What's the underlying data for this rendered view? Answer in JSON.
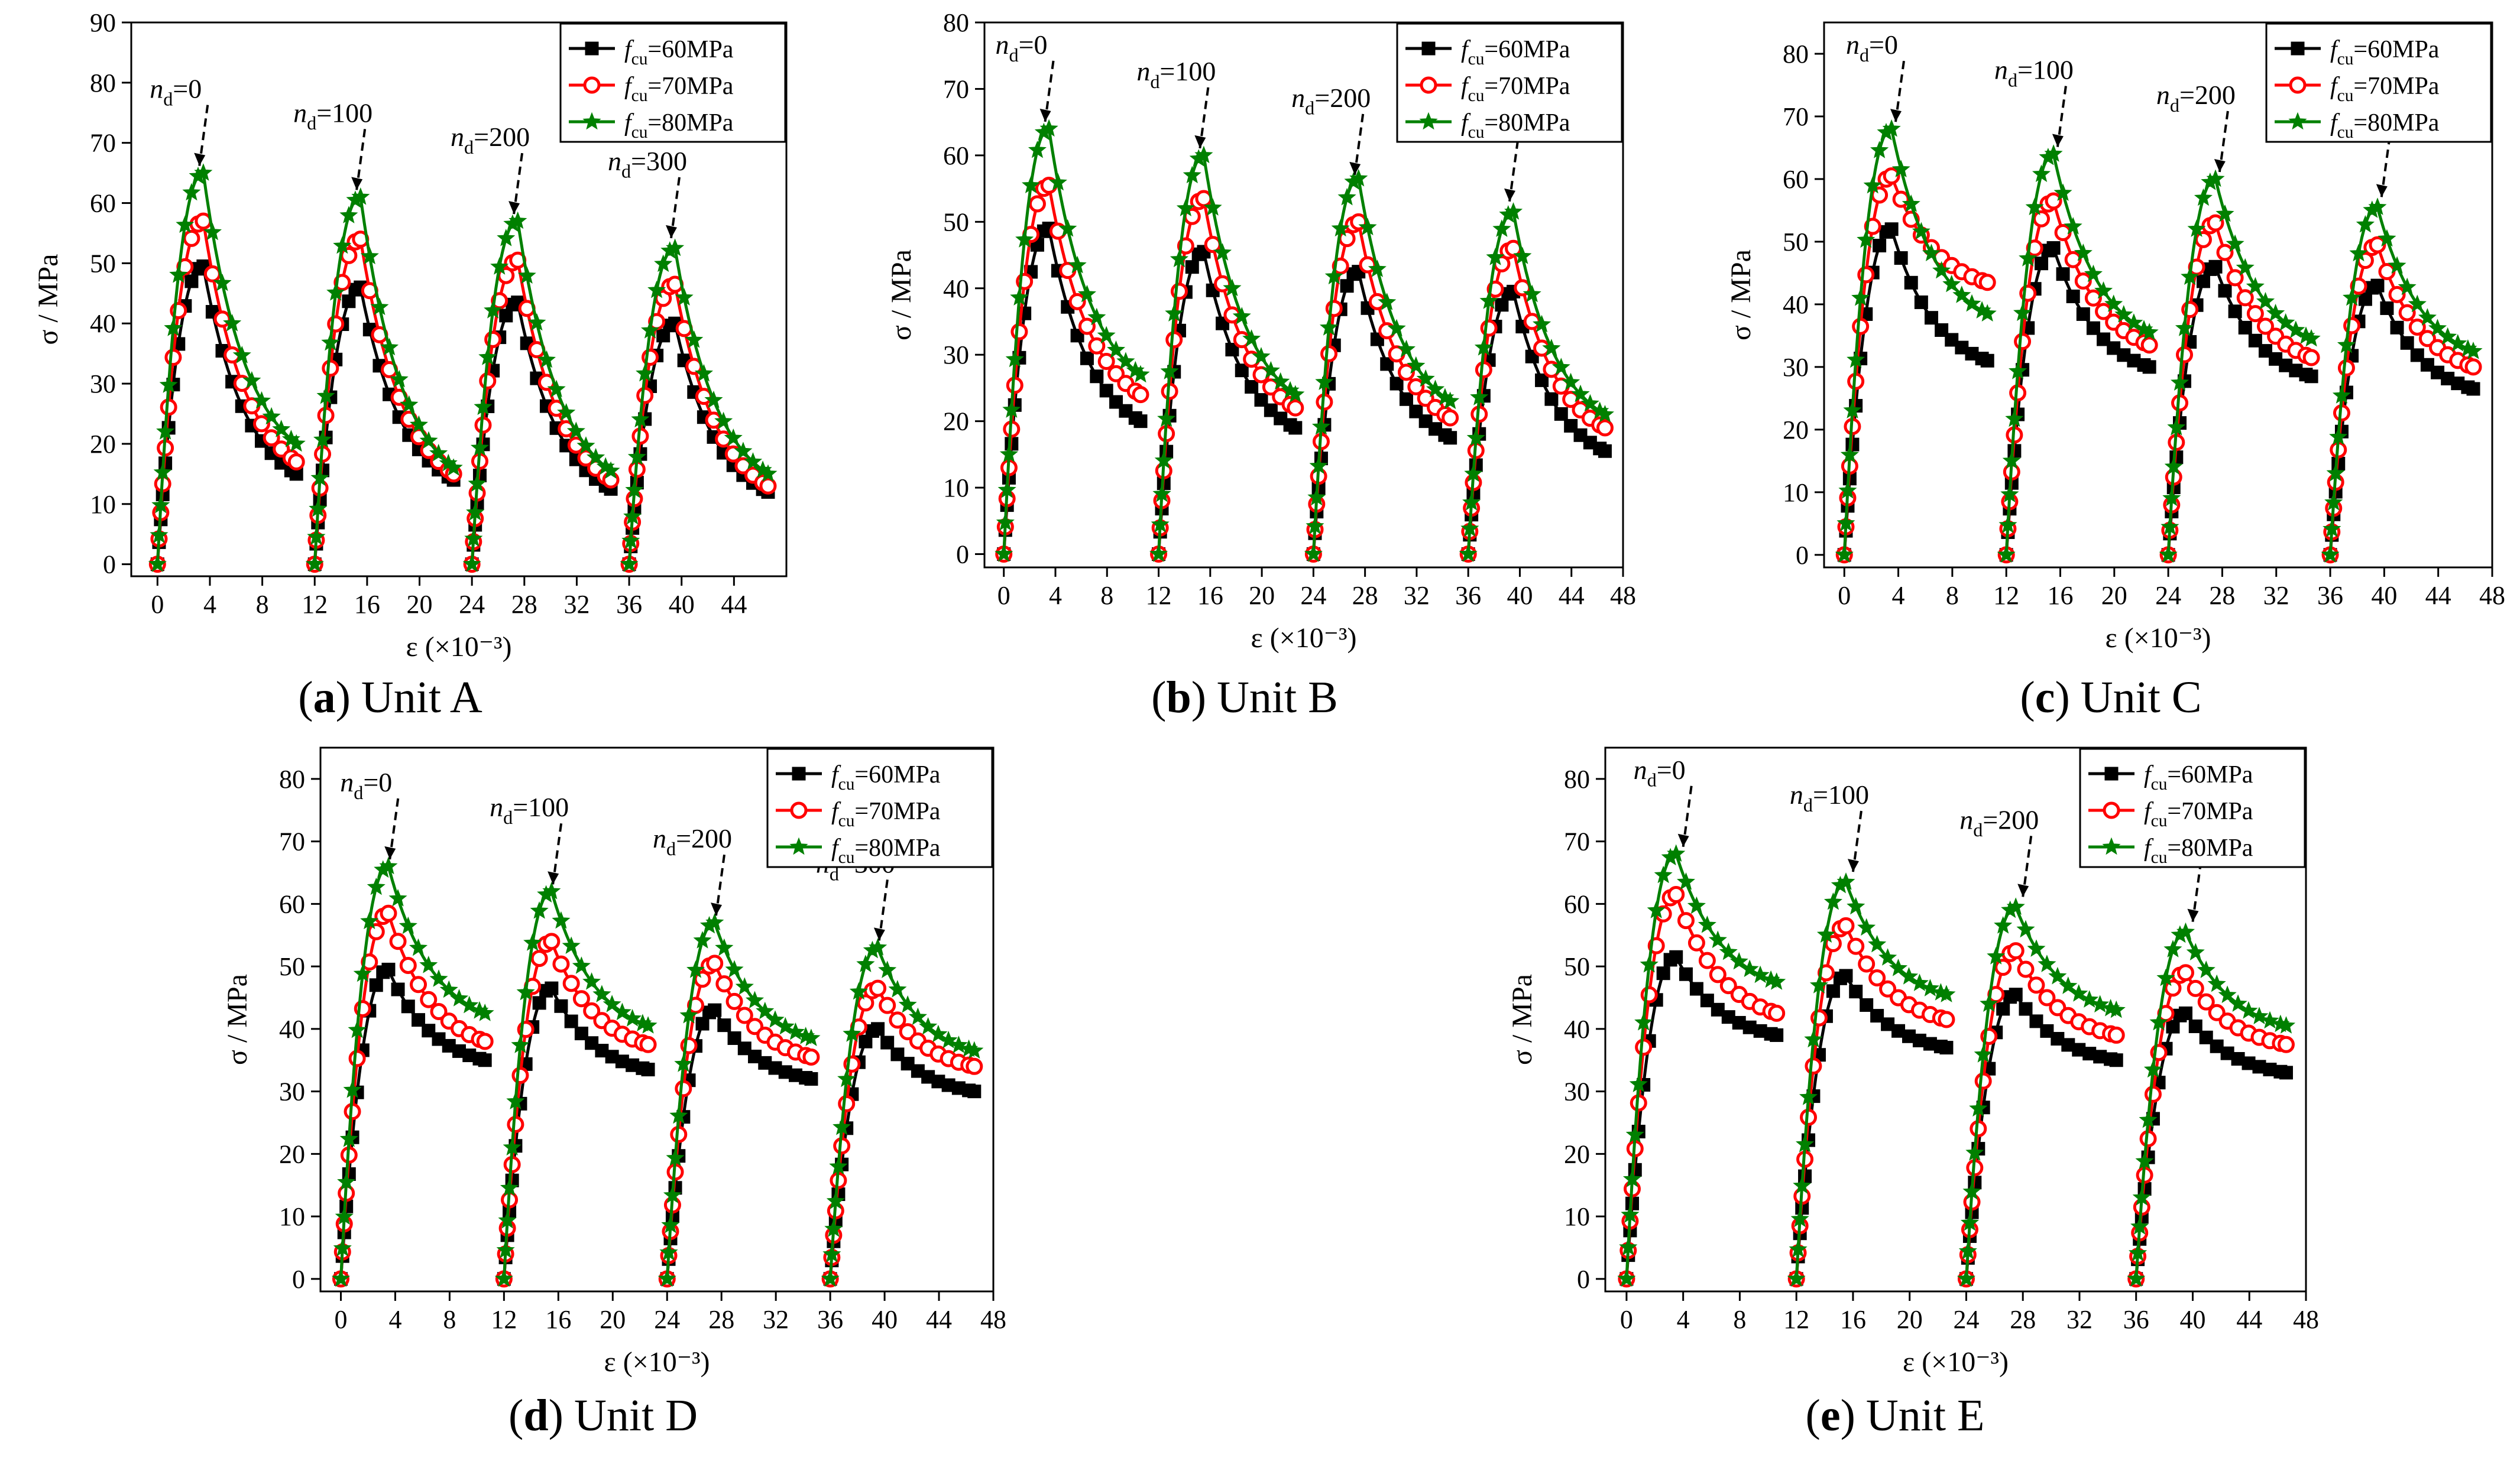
{
  "figure": {
    "panels": [
      {
        "tag": "(a)",
        "caption": "Unit A"
      },
      {
        "tag": "(b)",
        "caption": "Unit B"
      },
      {
        "tag": "(c)",
        "caption": "Unit C"
      },
      {
        "tag": "(d)",
        "caption": "Unit D"
      },
      {
        "tag": "(e)",
        "caption": "Unit E"
      }
    ]
  },
  "colors": {
    "fcu60": "#000000",
    "fcu70": "#ff0000",
    "fcu80": "#008000"
  },
  "chart_data": [
    {
      "type": "line",
      "panel": "Unit A",
      "xlabel": "ε (×10⁻³)",
      "ylabel": "σ / MPa",
      "xlim": [
        -2,
        48
      ],
      "ylim": [
        -2,
        90
      ],
      "xticks": [
        0,
        4,
        8,
        12,
        16,
        20,
        24,
        28,
        32,
        36,
        40,
        44
      ],
      "yticks": [
        0,
        10,
        20,
        30,
        40,
        50,
        60,
        70,
        80,
        90
      ],
      "legend_position": "top-right",
      "legend": [
        "fcu=60MPa",
        "fcu=70MPa",
        "fcu=80MPa"
      ],
      "annotations": [
        {
          "text": "nd=0",
          "x": 3.2,
          "y": 65
        },
        {
          "text": "nd=100",
          "x": 15.2,
          "y": 61
        },
        {
          "text": "nd=200",
          "x": 27.2,
          "y": 57
        },
        {
          "text": "nd=300",
          "x": 39.2,
          "y": 53
        }
      ],
      "cycles": [
        {
          "start": 0,
          "end": 10.6,
          "peaks": [
            49.5,
            57.0,
            65.0
          ],
          "ends": [
            15.0,
            17.0,
            20.0
          ]
        },
        {
          "start": 12,
          "end": 22.6,
          "peaks": [
            46.0,
            54.0,
            61.0
          ],
          "ends": [
            14.0,
            15.0,
            16.0
          ]
        },
        {
          "start": 24,
          "end": 34.6,
          "peaks": [
            43.5,
            50.5,
            57.0
          ],
          "ends": [
            12.5,
            14.0,
            15.5
          ]
        },
        {
          "start": 36,
          "end": 46.6,
          "peaks": [
            40.0,
            46.5,
            52.5
          ],
          "ends": [
            12.0,
            13.0,
            15.0
          ]
        }
      ]
    },
    {
      "type": "line",
      "panel": "Unit B",
      "xlabel": "ε (×10⁻³)",
      "ylabel": "σ / MPa",
      "xlim": [
        -1.5,
        48
      ],
      "ylim": [
        -2,
        80
      ],
      "xticks": [
        0,
        4,
        8,
        12,
        16,
        20,
        24,
        28,
        32,
        36,
        40,
        44,
        48
      ],
      "yticks": [
        0,
        10,
        20,
        30,
        40,
        50,
        60,
        70,
        80
      ],
      "legend_position": "top-right",
      "legend": [
        "fcu=60MPa",
        "fcu=70MPa",
        "fcu=80MPa"
      ],
      "annotations": [
        {
          "text": "nd=0",
          "x": 3.2,
          "y": 64
        },
        {
          "text": "nd=100",
          "x": 15.2,
          "y": 60
        },
        {
          "text": "nd=200",
          "x": 27.2,
          "y": 56
        },
        {
          "text": "nd=300",
          "x": 39.2,
          "y": 52
        }
      ],
      "cycles": [
        {
          "start": 0,
          "end": 10.6,
          "peaks": [
            49.0,
            55.5,
            64.0
          ],
          "ends": [
            20.0,
            24.0,
            27.0
          ]
        },
        {
          "start": 12,
          "end": 22.6,
          "peaks": [
            45.5,
            53.5,
            60.0
          ],
          "ends": [
            19.0,
            22.0,
            24.0
          ]
        },
        {
          "start": 24,
          "end": 34.6,
          "peaks": [
            42.5,
            50.0,
            56.5
          ],
          "ends": [
            17.5,
            20.5,
            23.0
          ]
        },
        {
          "start": 36,
          "end": 46.6,
          "peaks": [
            39.5,
            46.0,
            51.5
          ],
          "ends": [
            15.5,
            19.0,
            21.0
          ]
        }
      ]
    },
    {
      "type": "line",
      "panel": "Unit C",
      "xlabel": "ε (×10⁻³)",
      "ylabel": "σ / MPa",
      "xlim": [
        -1.5,
        48
      ],
      "ylim": [
        -2,
        85
      ],
      "xticks": [
        0,
        4,
        8,
        12,
        16,
        20,
        24,
        28,
        32,
        36,
        40,
        44,
        48
      ],
      "yticks": [
        0,
        10,
        20,
        30,
        40,
        50,
        60,
        70,
        80
      ],
      "legend_position": "top-right",
      "legend": [
        "fcu=60MPa",
        "fcu=70MPa",
        "fcu=80MPa"
      ],
      "annotations": [
        {
          "text": "nd=0",
          "x": 3.8,
          "y": 68
        },
        {
          "text": "nd=100",
          "x": 15.8,
          "y": 64
        },
        {
          "text": "nd=200",
          "x": 27.8,
          "y": 60
        },
        {
          "text": "nd=300",
          "x": 39.8,
          "y": 56
        }
      ],
      "cycles": [
        {
          "start": 0,
          "end": 10.6,
          "peaks": [
            52.0,
            60.5,
            68.0
          ],
          "ends": [
            31.0,
            43.5,
            38.5
          ]
        },
        {
          "start": 12,
          "end": 22.6,
          "peaks": [
            49.0,
            56.5,
            64.0
          ],
          "ends": [
            30.0,
            33.5,
            35.5
          ]
        },
        {
          "start": 24,
          "end": 34.6,
          "peaks": [
            46.0,
            53.0,
            60.0
          ],
          "ends": [
            28.5,
            31.5,
            34.5
          ]
        },
        {
          "start": 36,
          "end": 46.6,
          "peaks": [
            43.0,
            49.5,
            55.5
          ],
          "ends": [
            26.5,
            30.0,
            32.5
          ]
        }
      ]
    },
    {
      "type": "line",
      "panel": "Unit D",
      "xlabel": "ε (×10⁻³)",
      "ylabel": "σ / MPa",
      "xlim": [
        -1.5,
        48
      ],
      "ylim": [
        -2,
        85
      ],
      "xticks": [
        0,
        4,
        8,
        12,
        16,
        20,
        24,
        28,
        32,
        36,
        40,
        44,
        48
      ],
      "yticks": [
        0,
        10,
        20,
        30,
        40,
        50,
        60,
        70,
        80
      ],
      "legend_position": "top-right",
      "legend": [
        "fcu=60MPa",
        "fcu=70MPa",
        "fcu=80MPa"
      ],
      "annotations": [
        {
          "text": "nd=0",
          "x": 3.6,
          "y": 66
        },
        {
          "text": "nd=100",
          "x": 15.6,
          "y": 62
        },
        {
          "text": "nd=200",
          "x": 27.6,
          "y": 57
        },
        {
          "text": "nd=300",
          "x": 39.6,
          "y": 53
        }
      ],
      "cycles": [
        {
          "start": 0,
          "end": 10.6,
          "peaks": [
            49.5,
            58.5,
            66.0
          ],
          "ends": [
            35.0,
            38.0,
            42.5
          ]
        },
        {
          "start": 12,
          "end": 22.6,
          "peaks": [
            46.5,
            54.0,
            62.0
          ],
          "ends": [
            33.5,
            37.5,
            40.5
          ]
        },
        {
          "start": 24,
          "end": 34.6,
          "peaks": [
            43.0,
            50.5,
            57.0
          ],
          "ends": [
            32.0,
            35.5,
            38.5
          ]
        },
        {
          "start": 36,
          "end": 46.6,
          "peaks": [
            40.0,
            46.5,
            53.0
          ],
          "ends": [
            30.0,
            34.0,
            36.5
          ]
        }
      ]
    },
    {
      "type": "line",
      "panel": "Unit E",
      "xlabel": "ε (×10⁻³)",
      "ylabel": "σ / MPa",
      "xlim": [
        -1.5,
        48
      ],
      "ylim": [
        -2,
        85
      ],
      "xticks": [
        0,
        4,
        8,
        12,
        16,
        20,
        24,
        28,
        32,
        36,
        40,
        44,
        48
      ],
      "yticks": [
        0,
        10,
        20,
        30,
        40,
        50,
        60,
        70,
        80
      ],
      "legend_position": "top-right",
      "legend": [
        "fcu=60MPa",
        "fcu=70MPa",
        "fcu=80MPa"
      ],
      "annotations": [
        {
          "text": "nd=0",
          "x": 4.0,
          "y": 68
        },
        {
          "text": "nd=100",
          "x": 16.0,
          "y": 64
        },
        {
          "text": "nd=200",
          "x": 28.0,
          "y": 60
        },
        {
          "text": "nd=300",
          "x": 40.0,
          "y": 56
        }
      ],
      "cycles": [
        {
          "start": 0,
          "end": 10.6,
          "peaks": [
            51.5,
            61.5,
            68.0
          ],
          "ends": [
            39.0,
            42.5,
            47.5
          ]
        },
        {
          "start": 12,
          "end": 22.6,
          "peaks": [
            48.5,
            56.5,
            63.5
          ],
          "ends": [
            37.0,
            41.5,
            45.5
          ]
        },
        {
          "start": 24,
          "end": 34.6,
          "peaks": [
            45.5,
            52.5,
            59.5
          ],
          "ends": [
            35.0,
            39.0,
            43.0
          ]
        },
        {
          "start": 36,
          "end": 46.6,
          "peaks": [
            42.5,
            49.0,
            55.5
          ],
          "ends": [
            33.0,
            37.5,
            40.5
          ]
        }
      ]
    }
  ]
}
